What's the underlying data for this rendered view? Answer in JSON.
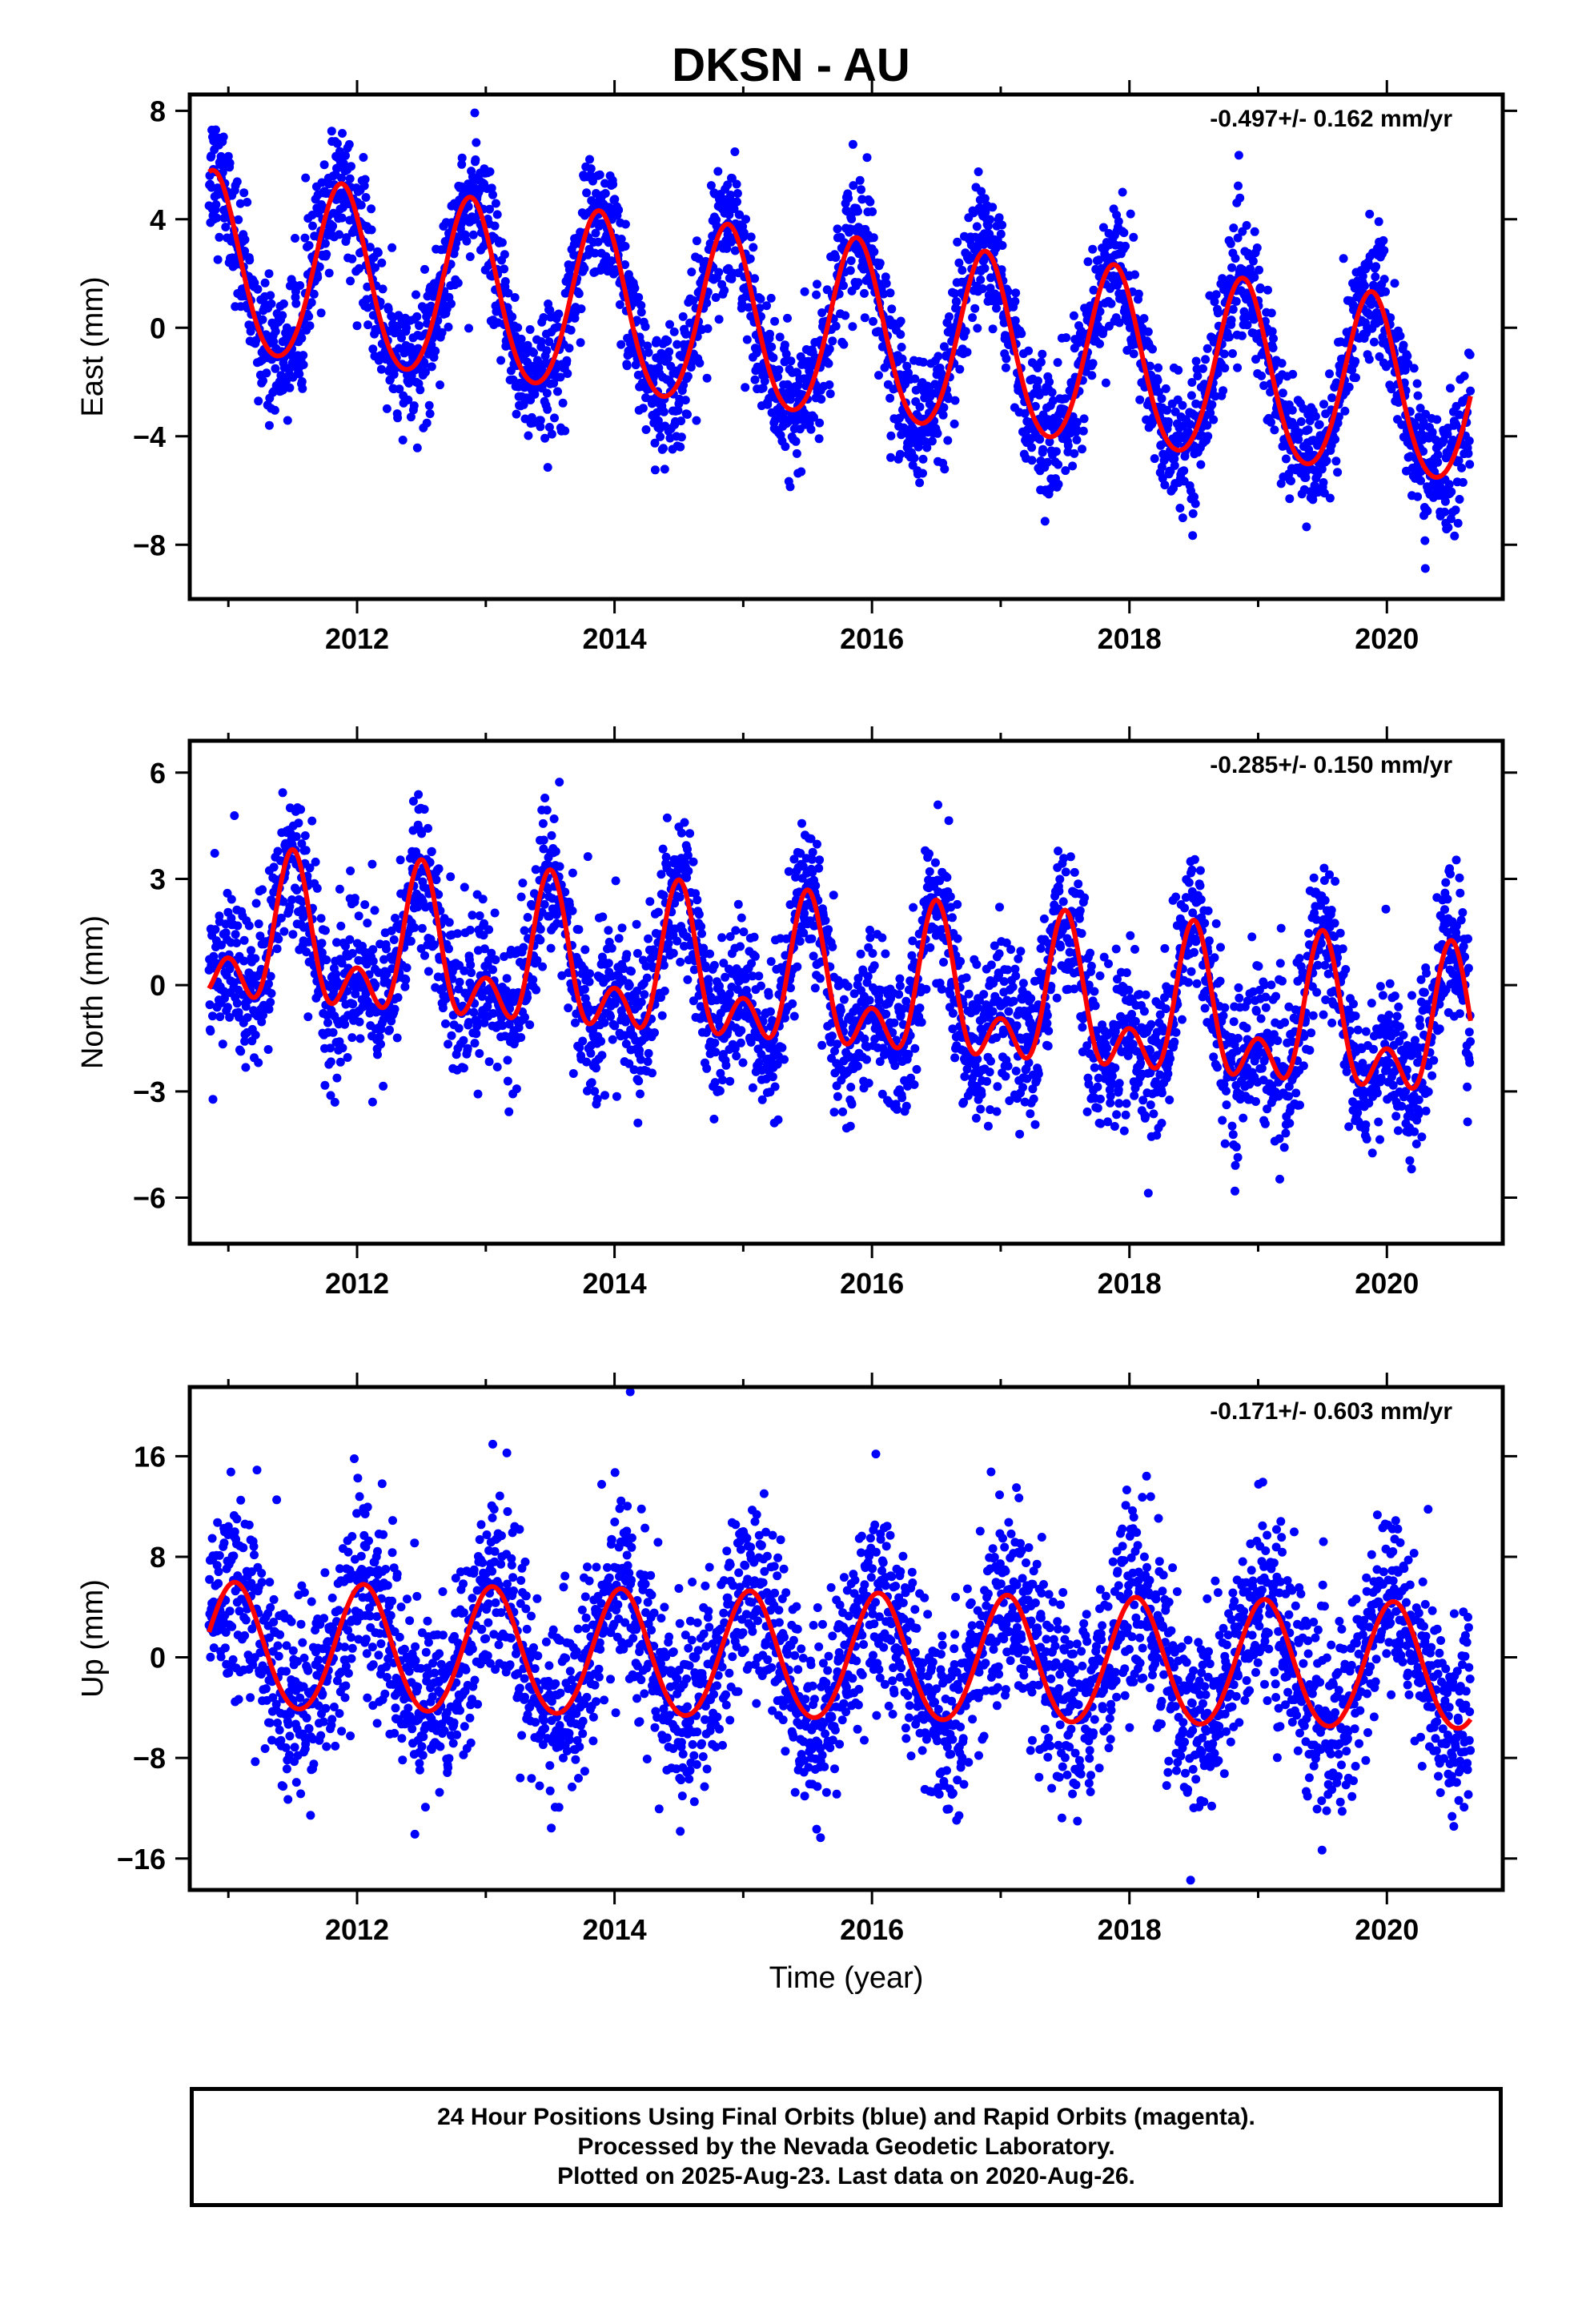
{
  "title": "DKSN - AU",
  "xlabel": "Time (year)",
  "footer": {
    "line1": "24 Hour Positions Using Final Orbits (blue) and Rapid Orbits (magenta).",
    "line2": "Processed by the Nevada Geodetic Laboratory.",
    "line3": "Plotted on 2025-Aug-23. Last data on 2020-Aug-26."
  },
  "colors": {
    "points": "#0000ff",
    "model": "#ff0000",
    "frame": "#000000"
  },
  "chart_data": [
    {
      "type": "scatter",
      "ylabel": "East (mm)",
      "rate": "-0.497+/- 0.162 mm/yr",
      "xlim": [
        2010.7,
        2020.9
      ],
      "ylim": [
        -10,
        8.6
      ],
      "xticks": [
        2012,
        2014,
        2016,
        2018,
        2020
      ],
      "yticks": [
        -8,
        -4,
        0,
        4,
        8
      ],
      "grid": false,
      "data_range": [
        2010.85,
        2020.65
      ],
      "model": {
        "intercept": 2.2,
        "trend": -0.497,
        "t0": 2010.9,
        "amp_annual": 3.3,
        "phase_peak": 0.88,
        "amp_semi": 0.3,
        "noise_sd": 1.2
      }
    },
    {
      "type": "scatter",
      "ylabel": "North (mm)",
      "rate": "-0.285+/- 0.150 mm/yr",
      "xlim": [
        2010.7,
        2020.9
      ],
      "ylim": [
        -7.3,
        6.9
      ],
      "xticks": [
        2012,
        2014,
        2016,
        2018,
        2020
      ],
      "yticks": [
        -6,
        -3,
        0,
        3,
        6
      ],
      "grid": false,
      "data_range": [
        2010.85,
        2020.65
      ],
      "model": {
        "intercept": 1.2,
        "trend": -0.285,
        "t0": 2010.9,
        "amp_annual": 1.6,
        "phase_peak": 0.5,
        "amp_semi": 1.2,
        "noise_sd": 1.1
      }
    },
    {
      "type": "scatter",
      "ylabel": "Up (mm)",
      "rate": "-0.171+/- 0.603 mm/yr",
      "xlim": [
        2010.7,
        2020.9
      ],
      "ylim": [
        -18.5,
        21.5
      ],
      "xticks": [
        2012,
        2014,
        2016,
        2018,
        2020
      ],
      "yticks": [
        -16,
        -8,
        0,
        8,
        16
      ],
      "grid": false,
      "data_range": [
        2010.85,
        2020.65
      ],
      "model": {
        "intercept": 0.7,
        "trend": -0.171,
        "t0": 2010.9,
        "amp_annual": 5.0,
        "phase_peak": 0.05,
        "amp_semi": 0.3,
        "noise_sd": 3.8
      }
    }
  ]
}
